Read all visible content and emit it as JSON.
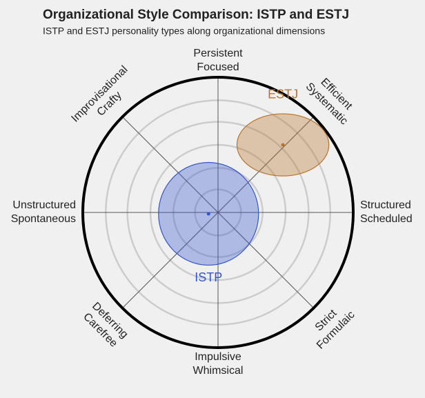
{
  "chart_data": {
    "type": "polar-ellipse",
    "title": "Organizational Style Comparison: ISTP and ESTJ",
    "subtitle": "ISTP and ESTJ personality types along organizational dimensions",
    "axes": [
      [
        "Persistent",
        "Focused"
      ],
      [
        "Efficient",
        "Systematic"
      ],
      [
        "Structured",
        "Scheduled"
      ],
      [
        "Strict",
        "Formulaic"
      ],
      [
        "Impulsive",
        "Whimsical"
      ],
      [
        "Deferring",
        "Carefree"
      ],
      [
        "Unstructured",
        "Spontaneous"
      ],
      [
        "Improvisational",
        "Crafty"
      ]
    ],
    "rlim": [
      0,
      1
    ],
    "rticks": [
      0.17,
      0.33,
      0.5,
      0.67,
      0.83
    ],
    "grid": true,
    "series": [
      {
        "name": "ISTP",
        "color": "#3355cc",
        "x": -0.07,
        "y": -0.01,
        "rx": 0.37,
        "ry": 0.38
      },
      {
        "name": "ESTJ",
        "color": "#b8732a",
        "x": 0.48,
        "y": 0.5,
        "rx": 0.34,
        "ry": 0.23
      }
    ]
  }
}
